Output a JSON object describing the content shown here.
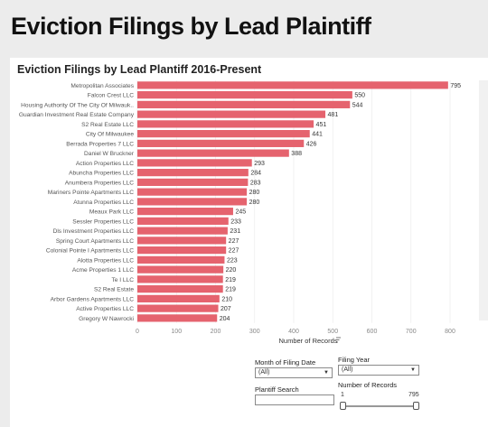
{
  "page": {
    "title": "Eviction Filings by Lead Plaintiff"
  },
  "chart_data": {
    "type": "bar",
    "orientation": "horizontal",
    "title": "Eviction Filings by Lead Plantiff 2016-Present",
    "xlabel": "Number of Records",
    "ylabel": "",
    "xlim": [
      0,
      800
    ],
    "xticks": [
      0,
      100,
      200,
      300,
      400,
      500,
      600,
      700,
      800
    ],
    "grid": true,
    "bar_color": "#e5636e",
    "categories": [
      "Metropolitan Associates",
      "Falcon Crest LLC",
      "Housing Authority Of The City Of Milwauk..",
      "Guardian Investment Real Estate Company",
      "S2 Real Estate LLC",
      "City Of Milwaukee",
      "Berrada Properties 7 LLC",
      "Daniel W Bruckner",
      "Action Properties LLC",
      "Abuncha Properties LLC",
      "Anumbera Properties LLC",
      "Mariners Pointe Apartments LLC",
      "Atunna Properties LLC",
      "Meaux Park LLC",
      "Sessler Properties LLC",
      "Dls Investment Properties LLC",
      "Spring Court Apartments LLC",
      "Colonial Pointe I Apartments LLC",
      "Alotta Properties LLC",
      "Acme Properties 1 LLC",
      "Te I LLC",
      "S2 Real Estate",
      "Arbor Gardens Apartments LLC",
      "Active Properties LLC",
      "Gregory W Nawrocki"
    ],
    "values": [
      795,
      550,
      544,
      481,
      451,
      441,
      426,
      388,
      293,
      284,
      283,
      280,
      280,
      245,
      233,
      231,
      227,
      227,
      223,
      220,
      219,
      219,
      210,
      207,
      204
    ]
  },
  "filters": {
    "month": {
      "label": "Month of Filing Date",
      "value": "(All)"
    },
    "year": {
      "label": "Filing Year",
      "value": "(All)"
    },
    "search": {
      "label": "Plantiff Search",
      "value": ""
    },
    "records": {
      "label": "Number of Records",
      "min": "1",
      "max": "795"
    }
  },
  "icons": {
    "sort": "sort-icon"
  }
}
